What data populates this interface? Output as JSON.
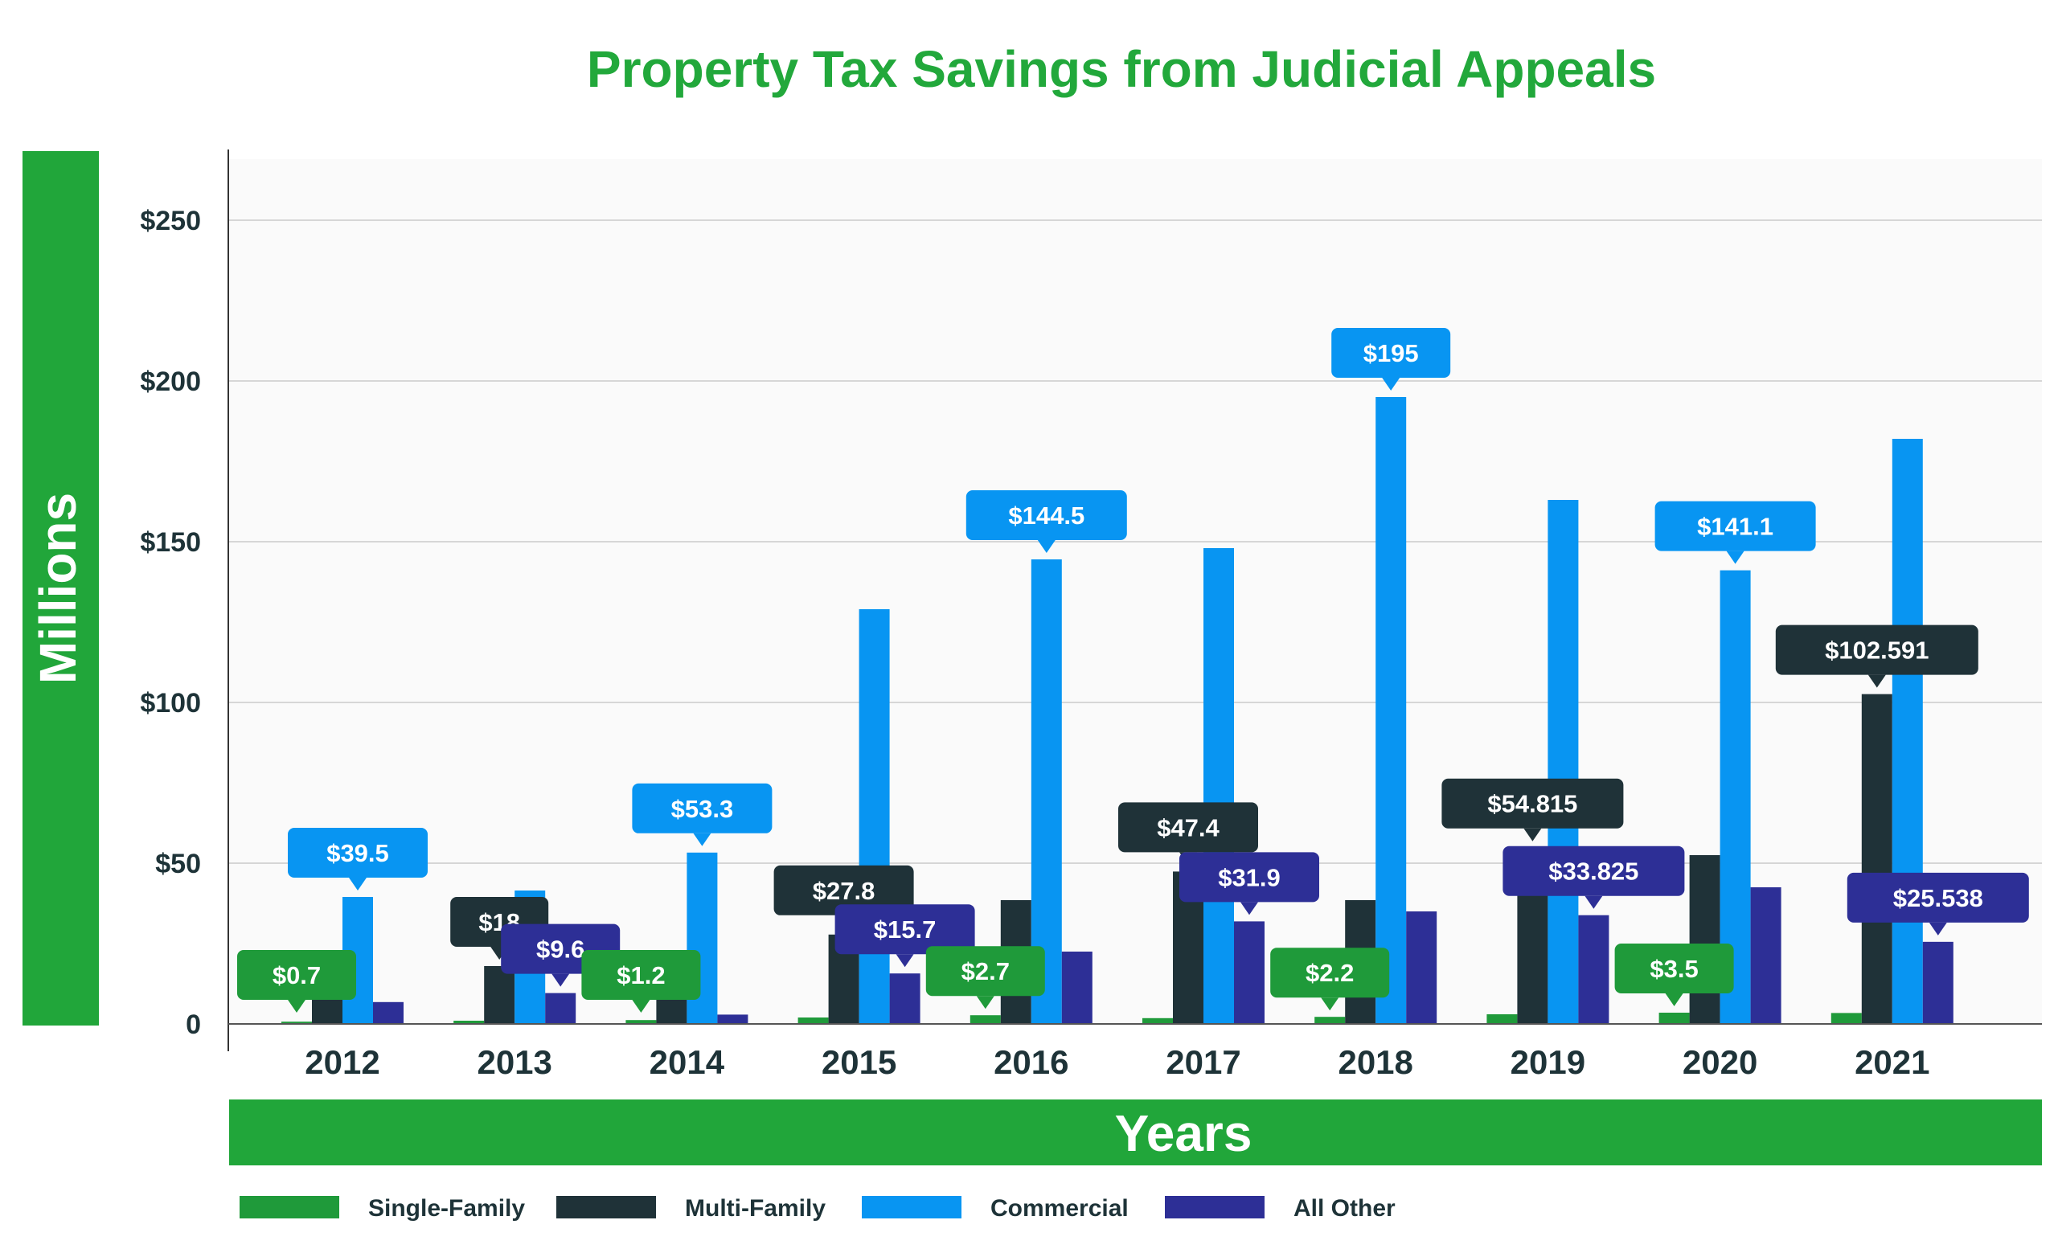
{
  "chart_data": {
    "type": "bar",
    "title": "Property Tax Savings from Judicial Appeals",
    "ylabel": "Millions",
    "xlabel": "Years",
    "ylim": [
      0,
      270
    ],
    "yticks": [
      0,
      50,
      100,
      150,
      200,
      250
    ],
    "ytick_labels": [
      "0",
      "$50",
      "$100",
      "$150",
      "$200",
      "$250"
    ],
    "categories": [
      "2012",
      "2013",
      "2014",
      "2015",
      "2016",
      "2017",
      "2018",
      "2019",
      "2020",
      "2021"
    ],
    "series": [
      {
        "name": "Single-Family",
        "color": "#1f9a3a",
        "values": [
          0.7,
          1.0,
          1.2,
          2.0,
          2.7,
          1.8,
          2.2,
          3.0,
          3.5,
          3.4
        ]
      },
      {
        "name": "Multi-Family",
        "color": "#1f3238",
        "values": [
          8.5,
          18,
          10,
          27.8,
          38.5,
          47.4,
          38.5,
          54.815,
          52.5,
          102.591
        ]
      },
      {
        "name": "Commercial",
        "color": "#0895f2",
        "values": [
          39.5,
          41.5,
          53.3,
          129,
          144.5,
          148,
          195,
          163,
          141.1,
          182
        ]
      },
      {
        "name": "All Other",
        "color": "#2d2f96",
        "values": [
          6.8,
          9.6,
          2.9,
          15.7,
          22.5,
          31.9,
          35,
          33.825,
          42.5,
          25.538
        ]
      }
    ],
    "data_labels": [
      {
        "text": "$0.7",
        "category": "2012",
        "series": "Single-Family"
      },
      {
        "text": "$39.5",
        "category": "2012",
        "series": "Commercial"
      },
      {
        "text": "$18",
        "category": "2013",
        "series": "Multi-Family"
      },
      {
        "text": "$9.6",
        "category": "2013",
        "series": "All Other"
      },
      {
        "text": "$1.2",
        "category": "2014",
        "series": "Single-Family"
      },
      {
        "text": "$53.3",
        "category": "2014",
        "series": "Commercial"
      },
      {
        "text": "$27.8",
        "category": "2015",
        "series": "Multi-Family"
      },
      {
        "text": "$15.7",
        "category": "2015",
        "series": "All Other"
      },
      {
        "text": "$2.7",
        "category": "2016",
        "series": "Single-Family"
      },
      {
        "text": "$144.5",
        "category": "2016",
        "series": "Commercial"
      },
      {
        "text": "$47.4",
        "category": "2017",
        "series": "Multi-Family"
      },
      {
        "text": "$31.9",
        "category": "2017",
        "series": "All Other"
      },
      {
        "text": "$2.2",
        "category": "2018",
        "series": "Single-Family"
      },
      {
        "text": "$195",
        "category": "2018",
        "series": "Commercial"
      },
      {
        "text": "$54.815",
        "category": "2019",
        "series": "Multi-Family"
      },
      {
        "text": "$33.825",
        "category": "2019",
        "series": "All Other"
      },
      {
        "text": "$3.5",
        "category": "2020",
        "series": "Single-Family"
      },
      {
        "text": "$141.1",
        "category": "2020",
        "series": "Commercial"
      },
      {
        "text": "$102.591",
        "category": "2021",
        "series": "Multi-Family"
      },
      {
        "text": "$25.538",
        "category": "2021",
        "series": "All Other"
      }
    ],
    "grid": true,
    "legend_position": "bottom-left",
    "colors": {
      "title": "#22a83b",
      "axis_band": "#21a63a",
      "axis_band_text": "#ffffff",
      "tick_text": "#1e3338",
      "grid": "#d6d6d6",
      "plot_bg": "#fafafa",
      "label_text": "#ffffff"
    }
  }
}
